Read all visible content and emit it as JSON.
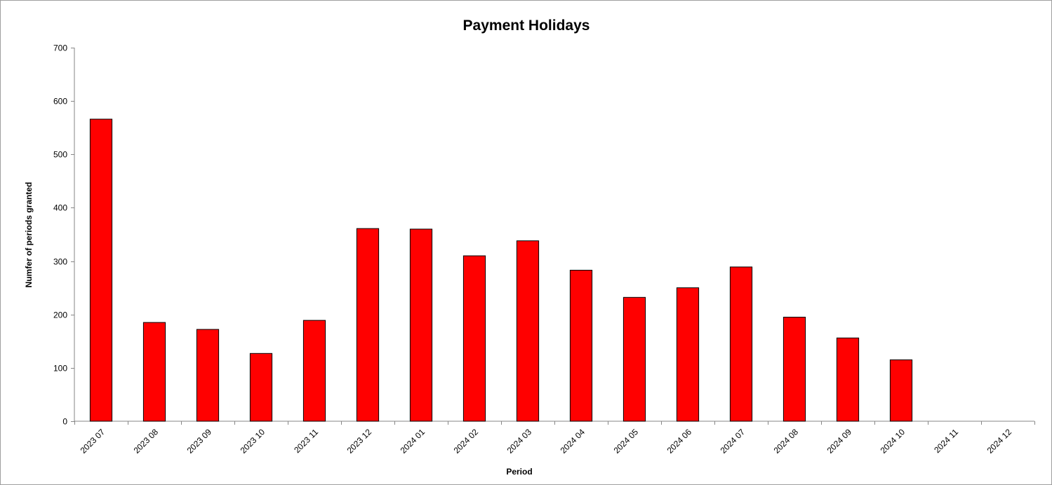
{
  "chart_data": {
    "type": "bar",
    "title": "Payment Holidays",
    "xlabel": "Period",
    "ylabel": "Numfer of periods granted",
    "categories": [
      "2023 07",
      "2023 08",
      "2023 09",
      "2023 10",
      "2023 11",
      "2023 12",
      "2024 01",
      "2024 02",
      "2024 03",
      "2024 04",
      "2024 05",
      "2024 06",
      "2024 07",
      "2024 08",
      "2024 09",
      "2024 10",
      "2024 11",
      "2024 12"
    ],
    "values": [
      566,
      185,
      172,
      127,
      189,
      361,
      360,
      310,
      338,
      283,
      232,
      250,
      289,
      195,
      156,
      115,
      null,
      null
    ],
    "ylim": [
      0,
      700
    ],
    "yticks": [
      0,
      100,
      200,
      300,
      400,
      500,
      600,
      700
    ],
    "grid": false,
    "legend": "none",
    "colors": {
      "bar_fill": "#ff0000",
      "bar_stroke": "#000000",
      "axis": "#868686"
    }
  }
}
